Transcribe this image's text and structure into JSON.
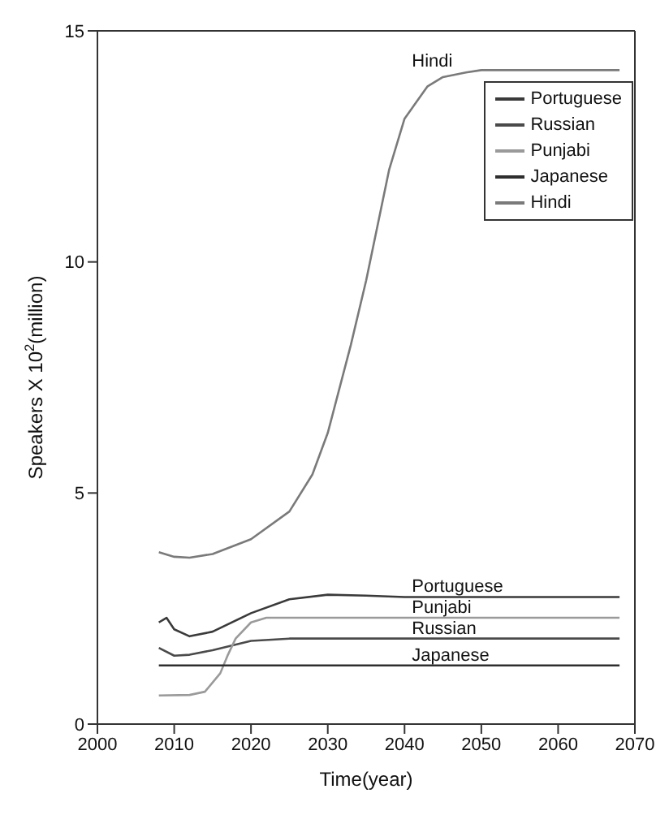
{
  "chart_data": {
    "type": "line",
    "xlabel": "Time(year)",
    "ylabel": "Speakers X 10$^{2}$(million)",
    "xlim": [
      2000,
      2070
    ],
    "xticks": [
      2000,
      2010,
      2020,
      2030,
      2040,
      2050,
      2060,
      2070
    ],
    "ylim": [
      0,
      15
    ],
    "yticks": [
      0,
      5,
      10,
      15
    ],
    "grid": false,
    "legend": "top right",
    "marker": "none",
    "line_style": "solid",
    "series": [
      {
        "name": "Portuguese",
        "color": "#3a3a3a",
        "x": [
          2008,
          2009,
          2010,
          2012,
          2015,
          2020,
          2025,
          2030,
          2035,
          2040,
          2050,
          2068
        ],
        "values": [
          2.2,
          2.3,
          2.05,
          1.9,
          2.0,
          2.4,
          2.7,
          2.8,
          2.78,
          2.75,
          2.75,
          2.75
        ]
      },
      {
        "name": "Russian",
        "color": "#4a4a4a",
        "x": [
          2008,
          2010,
          2012,
          2015,
          2020,
          2025,
          2030,
          2068
        ],
        "values": [
          1.65,
          1.48,
          1.5,
          1.6,
          1.8,
          1.85,
          1.85,
          1.85
        ]
      },
      {
        "name": "Punjabi",
        "color": "#9a9a9a",
        "x": [
          2008,
          2012,
          2014,
          2016,
          2017,
          2018,
          2020,
          2022,
          2030,
          2068
        ],
        "values": [
          0.62,
          0.63,
          0.7,
          1.1,
          1.5,
          1.85,
          2.2,
          2.3,
          2.3,
          2.3
        ]
      },
      {
        "name": "Japanese",
        "color": "#2e2e2e",
        "x": [
          2008,
          2068
        ],
        "values": [
          1.27,
          1.27
        ]
      },
      {
        "name": "Hindi",
        "color": "#7a7a7a",
        "x": [
          2008,
          2010,
          2012,
          2015,
          2020,
          2025,
          2028,
          2030,
          2033,
          2035,
          2038,
          2040,
          2043,
          2045,
          2048,
          2050,
          2068
        ],
        "values": [
          3.72,
          3.62,
          3.6,
          3.68,
          4.0,
          4.6,
          5.4,
          6.3,
          8.2,
          9.6,
          12.0,
          13.1,
          13.8,
          14.0,
          14.1,
          14.15,
          14.15
        ]
      }
    ],
    "annotations": [
      "Hindi",
      {
        "text": "Portuguese",
        "y": 2.75
      },
      {
        "text": "Punjabi",
        "y": 2.3
      },
      {
        "text": "Russian",
        "y": 1.85
      },
      {
        "text": "Japanese",
        "y": 1.27
      }
    ]
  }
}
